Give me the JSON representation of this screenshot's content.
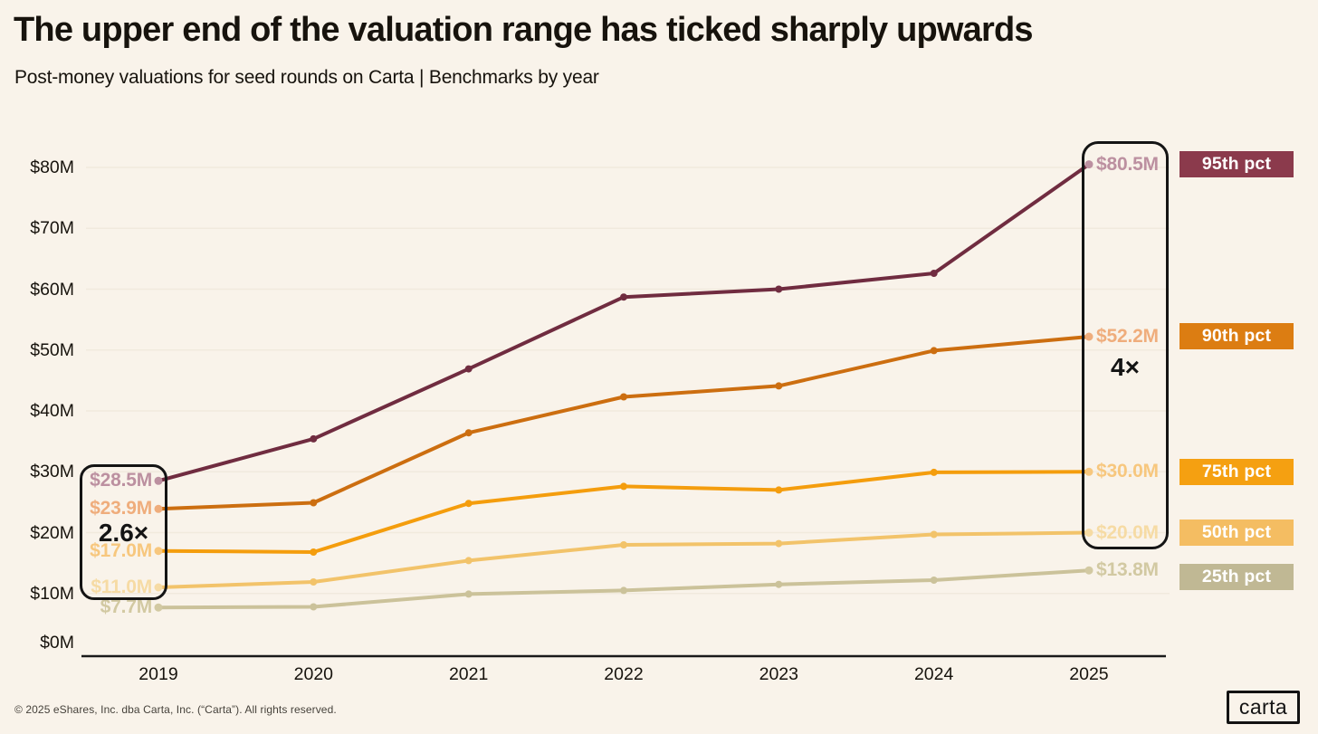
{
  "header": {
    "title": "The upper end of the valuation range has ticked sharply upwards",
    "subtitle": "Post-money valuations for seed rounds on Carta | Benchmarks by year"
  },
  "footer": {
    "copyright": "© 2025 eShares, Inc. dba Carta, Inc. (“Carta”). All rights reserved.",
    "logo_text": "carta"
  },
  "colors": {
    "background": "#F9F3EA",
    "axis": "#1A1A1A",
    "gridline": "#F1EADD",
    "text": "#17130D",
    "annotation": "#141414"
  },
  "chart_data": {
    "type": "line",
    "title": "The upper end of the valuation range has ticked sharply upwards",
    "subtitle": "Post-money valuations for seed rounds on Carta | Benchmarks by year",
    "x": [
      "2019",
      "2020",
      "2021",
      "2022",
      "2023",
      "2024",
      "2025"
    ],
    "ylim": [
      0,
      80
    ],
    "yticks": [
      "$0M",
      "$10M",
      "$20M",
      "$30M",
      "$40M",
      "$50M",
      "$60M",
      "$70M",
      "$80M"
    ],
    "grid": "horizontal",
    "legend_position": "right",
    "series": [
      {
        "name": "95th pct",
        "values": [
          28.5,
          35.4,
          46.9,
          58.7,
          60.0,
          62.6,
          80.5
        ],
        "start_label": "$28.5M",
        "end_label": "$80.5M",
        "line_color": "#702C40",
        "label_color": "#BC90A0",
        "badge_color": "#8B3A4C"
      },
      {
        "name": "90th pct",
        "values": [
          23.9,
          24.9,
          36.4,
          42.3,
          44.1,
          49.9,
          52.2
        ],
        "start_label": "$23.9M",
        "end_label": "$52.2M",
        "line_color": "#CC6E10",
        "label_color": "#EFAD7C",
        "badge_color": "#DC7D12"
      },
      {
        "name": "75th pct",
        "values": [
          17.0,
          16.8,
          24.8,
          27.6,
          27.0,
          29.9,
          30.0
        ],
        "start_label": "$17.0M",
        "end_label": "$30.0M",
        "line_color": "#F49D0D",
        "label_color": "#F7C77E",
        "badge_color": "#F5A011"
      },
      {
        "name": "50th pct",
        "values": [
          11.0,
          11.9,
          15.4,
          18.0,
          18.2,
          19.7,
          20.0
        ],
        "start_label": "$11.0M",
        "end_label": "$20.0M",
        "line_color": "#F2C36A",
        "label_color": "#F6DBA4",
        "badge_color": "#F4BD62"
      },
      {
        "name": "25th pct",
        "values": [
          7.7,
          7.8,
          9.9,
          10.5,
          11.5,
          12.2,
          13.8
        ],
        "start_label": "$7.7M",
        "end_label": "$13.8M",
        "line_color": "#CBC29A",
        "label_color": "#D2C9A2",
        "badge_color": "#C0B894"
      }
    ],
    "annotations": [
      {
        "id": "start-multiple",
        "label": "2.6×"
      },
      {
        "id": "end-multiple",
        "label": "4×"
      }
    ]
  }
}
